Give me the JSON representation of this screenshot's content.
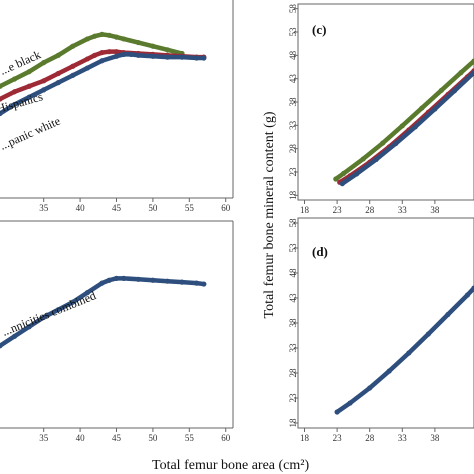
{
  "figure": {
    "xlabel": "Total femur bone area (cm²)",
    "ylabel": "Total femur bone mineral content (g)"
  },
  "chart_data": [
    {
      "panel": "top-left",
      "type": "line",
      "title": "",
      "x_ticks": [
        35,
        40,
        45,
        50,
        55,
        60
      ],
      "xlim": [
        29,
        61
      ],
      "ylim": [
        0,
        1
      ],
      "grid": false,
      "series": [
        {
          "name": "Non-Hispanic black",
          "color": "#5a7a2e",
          "x": [
            29,
            31,
            33,
            35,
            37,
            39,
            41,
            42,
            43,
            44,
            45,
            46,
            48,
            50,
            52,
            54
          ],
          "y": [
            0.57,
            0.61,
            0.65,
            0.7,
            0.74,
            0.79,
            0.83,
            0.845,
            0.855,
            0.85,
            0.84,
            0.83,
            0.81,
            0.79,
            0.77,
            0.75
          ]
        },
        {
          "name": "Hispanics",
          "color": "#9e2a36",
          "x": [
            29,
            31,
            33,
            35,
            37,
            39,
            41,
            42,
            43,
            44,
            45,
            46,
            48,
            50,
            52,
            54,
            56,
            57
          ],
          "y": [
            0.5,
            0.54,
            0.57,
            0.6,
            0.64,
            0.68,
            0.72,
            0.74,
            0.755,
            0.76,
            0.76,
            0.755,
            0.75,
            0.745,
            0.74,
            0.735,
            0.73,
            0.73
          ]
        },
        {
          "name": "Non-Hispanic white",
          "color": "#2e4f7e",
          "x": [
            29,
            31,
            33,
            35,
            37,
            39,
            41,
            43,
            45,
            46,
            47,
            48,
            50,
            52,
            54,
            56,
            57
          ],
          "y": [
            0.42,
            0.47,
            0.51,
            0.55,
            0.59,
            0.63,
            0.67,
            0.71,
            0.735,
            0.745,
            0.745,
            0.74,
            0.735,
            0.73,
            0.73,
            0.725,
            0.725
          ]
        }
      ],
      "labels": [
        "...e black",
        "Hispanics",
        "...panic white"
      ]
    },
    {
      "panel": "(c)",
      "type": "line",
      "title": "(c)",
      "x_ticks": [
        18,
        23,
        28,
        33,
        38
      ],
      "y_ticks": [
        18,
        23,
        28,
        33,
        38,
        43,
        48,
        53,
        58
      ],
      "xlim": [
        17,
        44
      ],
      "ylim": [
        17,
        59
      ],
      "grid": false,
      "series": [
        {
          "name": "",
          "color": "#5a7a2e",
          "x": [
            22.8,
            24,
            27,
            30,
            33,
            36,
            39,
            42,
            44
          ],
          "y": [
            21.5,
            22.7,
            25.8,
            29.2,
            32.9,
            36.7,
            40.5,
            44.3,
            46.8
          ]
        },
        {
          "name": "",
          "color": "#9e2a36",
          "x": [
            23.4,
            25,
            28,
            31,
            34,
            37,
            40,
            43,
            44
          ],
          "y": [
            20.8,
            22.2,
            25.1,
            28.4,
            32.0,
            35.8,
            39.6,
            43.4,
            44.7
          ]
        },
        {
          "name": "",
          "color": "#2e4f7e",
          "x": [
            23.8,
            26,
            29,
            32,
            35,
            38,
            41,
            44
          ],
          "y": [
            20.5,
            22.6,
            25.7,
            29.1,
            32.7,
            36.5,
            40.4,
            44.3
          ]
        }
      ]
    },
    {
      "panel": "bottom-left",
      "type": "line",
      "title": "",
      "x_ticks": [
        35,
        40,
        45,
        50,
        55,
        60
      ],
      "xlim": [
        29,
        61
      ],
      "ylim": [
        0,
        1
      ],
      "grid": false,
      "series": [
        {
          "name": "...nnicities combined",
          "color": "#2e4f7e",
          "x": [
            29,
            31,
            33,
            35,
            37,
            39,
            41,
            43,
            44,
            45,
            46,
            48,
            50,
            52,
            54,
            56,
            57
          ],
          "y": [
            0.38,
            0.43,
            0.48,
            0.53,
            0.57,
            0.61,
            0.66,
            0.71,
            0.725,
            0.735,
            0.735,
            0.73,
            0.725,
            0.72,
            0.715,
            0.71,
            0.705
          ]
        }
      ],
      "labels": [
        "...nnicities combined"
      ]
    },
    {
      "panel": "(d)",
      "type": "line",
      "title": "(d)",
      "x_ticks": [
        18,
        23,
        28,
        33,
        38
      ],
      "y_ticks": [
        18,
        23,
        28,
        33,
        38,
        43,
        48,
        53,
        58
      ],
      "xlim": [
        17,
        44
      ],
      "ylim": [
        17,
        59
      ],
      "grid": false,
      "series": [
        {
          "name": "",
          "color": "#2e4f7e",
          "x": [
            23,
            25,
            28,
            31,
            34,
            37,
            40,
            43,
            44
          ],
          "y": [
            20.2,
            22.0,
            25.0,
            28.4,
            32.0,
            35.8,
            39.7,
            43.6,
            45.0
          ]
        }
      ]
    }
  ]
}
